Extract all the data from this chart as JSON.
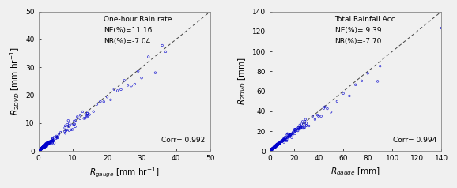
{
  "left": {
    "title": "One-hour Rain rate.",
    "ne": "NE(%)=11.16",
    "nb": "NB(%)=-7.04",
    "corr": "Corr= 0.992",
    "xlabel": "$R_{gauge}$ [mm hr$^{-1}$]",
    "ylabel": "$R_{2DVD}$ [mm hr$^{-1}$]",
    "xlim": [
      0,
      50
    ],
    "ylim": [
      0,
      50
    ],
    "xticks": [
      0,
      10,
      20,
      30,
      40,
      50
    ],
    "yticks": [
      0,
      10,
      20,
      30,
      40,
      50
    ]
  },
  "right": {
    "title": "Total Rainfall Acc.",
    "ne": "NE(%)= 9.39",
    "nb": "NB(%)=-7.70",
    "corr": "Corr= 0.994",
    "xlabel": "$R_{gauge}$ [mm]",
    "ylabel": "$R_{2DVD}$ [mm]",
    "xlim": [
      0,
      140
    ],
    "ylim": [
      0,
      140
    ],
    "xticks": [
      0,
      20,
      40,
      60,
      80,
      100,
      120,
      140
    ],
    "yticks": [
      0,
      20,
      40,
      60,
      80,
      100,
      120,
      140
    ]
  },
  "marker_color": "#0000cc",
  "marker": "o",
  "line_color": "#444444",
  "background_color": "#f0f0f0",
  "text_fontsize": 6.5,
  "label_fontsize": 7.5,
  "tick_fontsize": 6.5
}
